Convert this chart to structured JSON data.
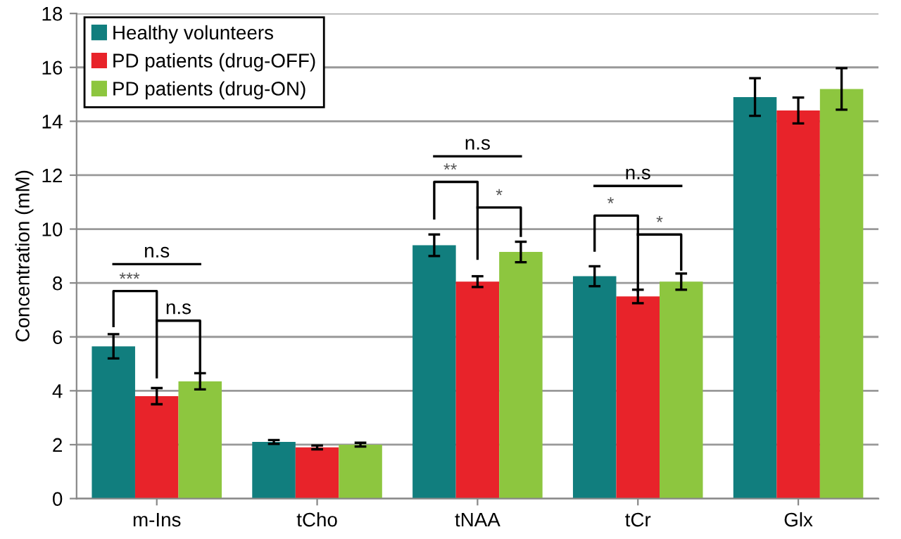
{
  "chart_data": {
    "type": "bar",
    "ylabel": "Concentration (mM)",
    "categories": [
      "m-Ins",
      "tCho",
      "tNAA",
      "tCr",
      "Glx"
    ],
    "series": [
      {
        "name": "Healthy volunteers",
        "color": "#117e7e",
        "values": [
          5.65,
          2.1,
          9.4,
          8.25,
          14.9
        ],
        "errors": [
          0.45,
          0.07,
          0.4,
          0.37,
          0.7
        ]
      },
      {
        "name": "PD patients (drug-OFF)",
        "color": "#e8232a",
        "values": [
          3.8,
          1.9,
          8.05,
          7.5,
          14.4
        ],
        "errors": [
          0.3,
          0.07,
          0.2,
          0.25,
          0.48
        ]
      },
      {
        "name": "PD patients (drug-ON)",
        "color": "#8dc63f",
        "values": [
          4.35,
          2.0,
          9.15,
          8.05,
          15.2
        ],
        "errors": [
          0.3,
          0.07,
          0.38,
          0.3,
          0.77
        ]
      }
    ],
    "ylim": [
      0,
      18
    ],
    "yticks": [
      0,
      2,
      4,
      6,
      8,
      10,
      12,
      14,
      16,
      18
    ],
    "grid": "y",
    "legend": "top left",
    "annotations": [
      "n.s",
      "***",
      "n.s",
      "n.s",
      "**",
      "*",
      "n.s",
      "*",
      "*"
    ]
  }
}
